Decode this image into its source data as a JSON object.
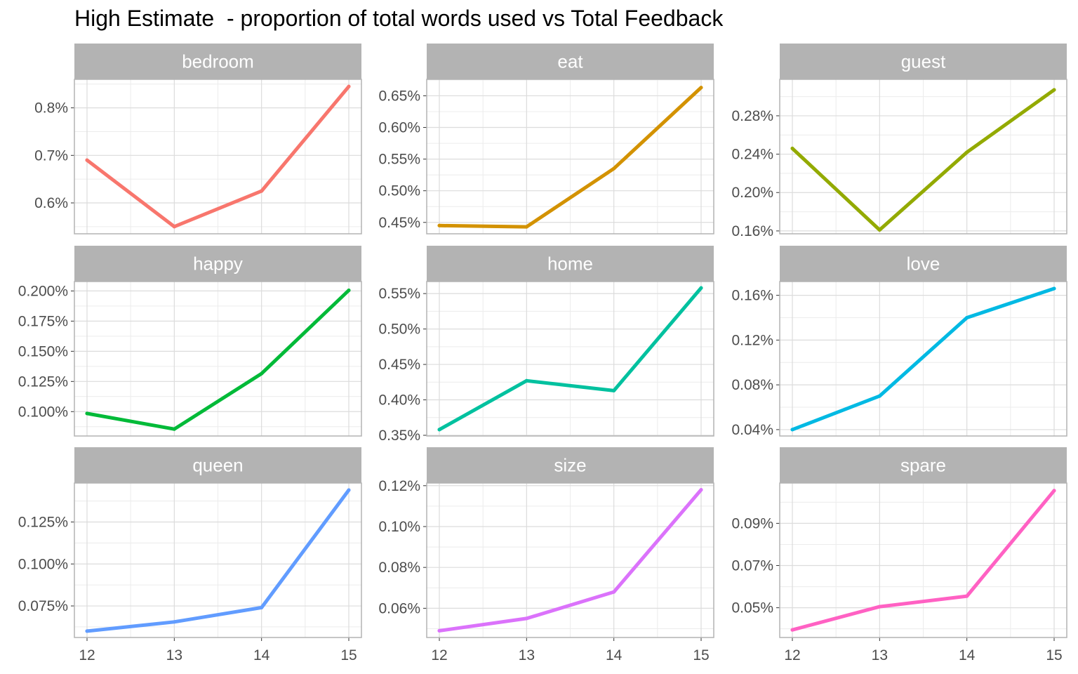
{
  "chart_data": {
    "type": "line",
    "title": "High Estimate  - proportion of total words used vs Total Feedback",
    "x": [
      12,
      13,
      14,
      15
    ],
    "x_ticks": [
      "12",
      "13",
      "14",
      "15"
    ],
    "grid": true,
    "strip_color": "#b3b3b3",
    "panels": [
      {
        "name": "bedroom",
        "color": "#F8766D",
        "values": [
          0.69,
          0.55,
          0.625,
          0.845
        ],
        "ylim": [
          0.535,
          0.86
        ],
        "y_ticks": [
          0.6,
          0.7,
          0.8
        ],
        "y_tick_labels": [
          "0.6%",
          "0.7%",
          "0.8%"
        ]
      },
      {
        "name": "eat",
        "color": "#D39200",
        "values": [
          0.445,
          0.443,
          0.535,
          0.663
        ],
        "ylim": [
          0.432,
          0.676
        ],
        "y_ticks": [
          0.45,
          0.5,
          0.55,
          0.6,
          0.65
        ],
        "y_tick_labels": [
          "0.45%",
          "0.50%",
          "0.55%",
          "0.60%",
          "0.65%"
        ]
      },
      {
        "name": "guest",
        "color": "#93AA00",
        "values": [
          0.246,
          0.161,
          0.242,
          0.307
        ],
        "ylim": [
          0.157,
          0.318
        ],
        "y_ticks": [
          0.16,
          0.2,
          0.24,
          0.28
        ],
        "y_tick_labels": [
          "0.16%",
          "0.20%",
          "0.24%",
          "0.28%"
        ]
      },
      {
        "name": "happy",
        "color": "#00BA38",
        "values": [
          0.0985,
          0.0855,
          0.1315,
          0.2005
        ],
        "ylim": [
          0.0798,
          0.2078
        ],
        "y_ticks": [
          0.1,
          0.125,
          0.15,
          0.175,
          0.2
        ],
        "y_tick_labels": [
          "0.100%",
          "0.125%",
          "0.150%",
          "0.175%",
          "0.200%"
        ]
      },
      {
        "name": "home",
        "color": "#00C19F",
        "values": [
          0.358,
          0.427,
          0.413,
          0.558
        ],
        "ylim": [
          0.349,
          0.567
        ],
        "y_ticks": [
          0.35,
          0.4,
          0.45,
          0.5,
          0.55
        ],
        "y_tick_labels": [
          "0.35%",
          "0.40%",
          "0.45%",
          "0.50%",
          "0.55%"
        ]
      },
      {
        "name": "love",
        "color": "#00B9E3",
        "values": [
          0.04,
          0.07,
          0.14,
          0.166
        ],
        "ylim": [
          0.0343,
          0.1723
        ],
        "y_ticks": [
          0.04,
          0.08,
          0.12,
          0.16
        ],
        "y_tick_labels": [
          "0.04%",
          "0.08%",
          "0.12%",
          "0.16%"
        ]
      },
      {
        "name": "queen",
        "color": "#619CFF",
        "values": [
          0.06,
          0.0655,
          0.074,
          0.144
        ],
        "ylim": [
          0.0562,
          0.1482
        ],
        "y_ticks": [
          0.075,
          0.1,
          0.125
        ],
        "y_tick_labels": [
          "0.075%",
          "0.100%",
          "0.125%"
        ]
      },
      {
        "name": "size",
        "color": "#DB72FB",
        "values": [
          0.049,
          0.055,
          0.068,
          0.118
        ],
        "ylim": [
          0.0457,
          0.1213
        ],
        "y_ticks": [
          0.06,
          0.08,
          0.1,
          0.12
        ],
        "y_tick_labels": [
          "0.06%",
          "0.08%",
          "0.10%",
          "0.12%"
        ]
      },
      {
        "name": "spare",
        "color": "#FF61C3",
        "values": [
          0.0395,
          0.0505,
          0.0555,
          0.1055
        ],
        "ylim": [
          0.0359,
          0.1091
        ],
        "y_ticks": [
          0.05,
          0.07,
          0.09
        ],
        "y_tick_labels": [
          "0.05%",
          "0.07%",
          "0.09%"
        ]
      }
    ]
  }
}
